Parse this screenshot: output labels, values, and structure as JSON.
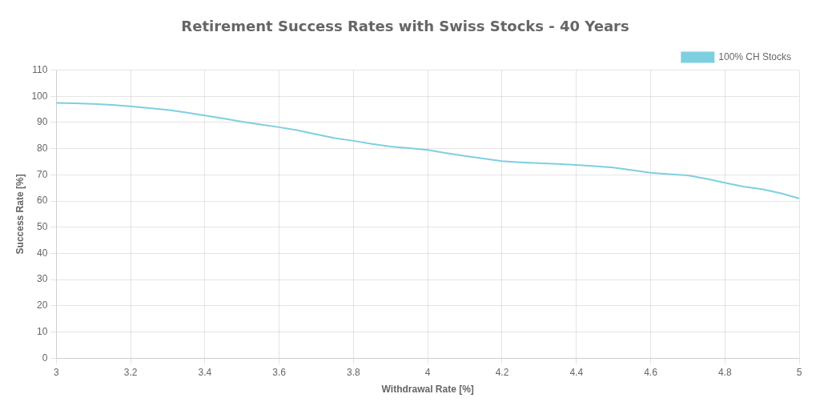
{
  "chart_data": {
    "type": "line",
    "title": "Retirement Success Rates with Swiss Stocks - 40 Years",
    "x_label": "Withdrawal Rate [%]",
    "y_label": "Success Rate [%]",
    "x": [
      3.0,
      3.05,
      3.1,
      3.15,
      3.2,
      3.25,
      3.3,
      3.35,
      3.4,
      3.45,
      3.5,
      3.55,
      3.6,
      3.65,
      3.7,
      3.75,
      3.8,
      3.85,
      3.9,
      3.95,
      4.0,
      4.05,
      4.1,
      4.15,
      4.2,
      4.25,
      4.3,
      4.35,
      4.4,
      4.45,
      4.5,
      4.55,
      4.6,
      4.65,
      4.7,
      4.75,
      4.8,
      4.85,
      4.9,
      4.95,
      5.0
    ],
    "series": [
      {
        "name": "100% CH Stocks",
        "color": "#7ecfe0",
        "values": [
          97.5,
          97.3,
          97.1,
          96.7,
          96.2,
          95.5,
          94.8,
          93.8,
          92.7,
          91.5,
          90.3,
          89.2,
          88.2,
          87.0,
          85.5,
          84.0,
          83.0,
          81.8,
          80.8,
          80.2,
          79.5,
          78.3,
          77.2,
          76.2,
          75.2,
          74.8,
          74.5,
          74.2,
          73.8,
          73.3,
          72.8,
          71.8,
          70.8,
          70.3,
          69.8,
          68.5,
          67.0,
          65.5,
          64.5,
          63.0,
          61.0
        ]
      }
    ],
    "xlim": [
      3,
      5
    ],
    "ylim": [
      0,
      110
    ],
    "xticks": [
      3,
      3.2,
      3.4,
      3.6,
      3.8,
      4,
      4.2,
      4.4,
      4.6,
      4.8,
      5
    ],
    "yticks": [
      0,
      10,
      20,
      30,
      40,
      50,
      60,
      70,
      80,
      90,
      100,
      110
    ],
    "grid": true,
    "legend": "upper right"
  }
}
